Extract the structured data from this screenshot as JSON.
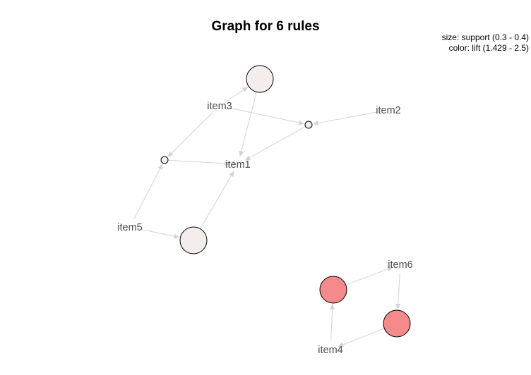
{
  "title": "Graph for 6 rules",
  "legend": {
    "size": "size: support (0.3 - 0.4)",
    "color": "color: lift (1.429 - 2.5)"
  },
  "colors": {
    "edge": "#d3d3d3",
    "low_lift_node": "#f3eeeb",
    "high_lift_node": "#f48a8a",
    "item_text": "#4d4d4d"
  },
  "items": [
    {
      "id": "item1",
      "label": "item1"
    },
    {
      "id": "item2",
      "label": "item2"
    },
    {
      "id": "item3",
      "label": "item3"
    },
    {
      "id": "item4",
      "label": "item4"
    },
    {
      "id": "item5",
      "label": "item5"
    },
    {
      "id": "item6",
      "label": "item6"
    }
  ],
  "rules": [
    {
      "id": "r-item3-item1",
      "lhs": [
        "item3"
      ],
      "rhs": "item1",
      "lift_level": "low",
      "support_level": "high"
    },
    {
      "id": "r-item2-item3-item1",
      "lhs": [
        "item2",
        "item3"
      ],
      "rhs": "item1",
      "lift_level": "low",
      "support_level": "low"
    },
    {
      "id": "r-item3-item5-item1",
      "lhs": [
        "item3",
        "item5"
      ],
      "rhs": "item1",
      "lift_level": "low",
      "support_level": "low"
    },
    {
      "id": "r-item5-item1",
      "lhs": [
        "item5"
      ],
      "rhs": "item1",
      "lift_level": "low",
      "support_level": "high"
    },
    {
      "id": "r-item4-item6",
      "lhs": [
        "item4"
      ],
      "rhs": "item6",
      "lift_level": "high",
      "support_level": "high"
    },
    {
      "id": "r-item6-item4",
      "lhs": [
        "item6"
      ],
      "rhs": "item4",
      "lift_level": "high",
      "support_level": "high"
    }
  ]
}
